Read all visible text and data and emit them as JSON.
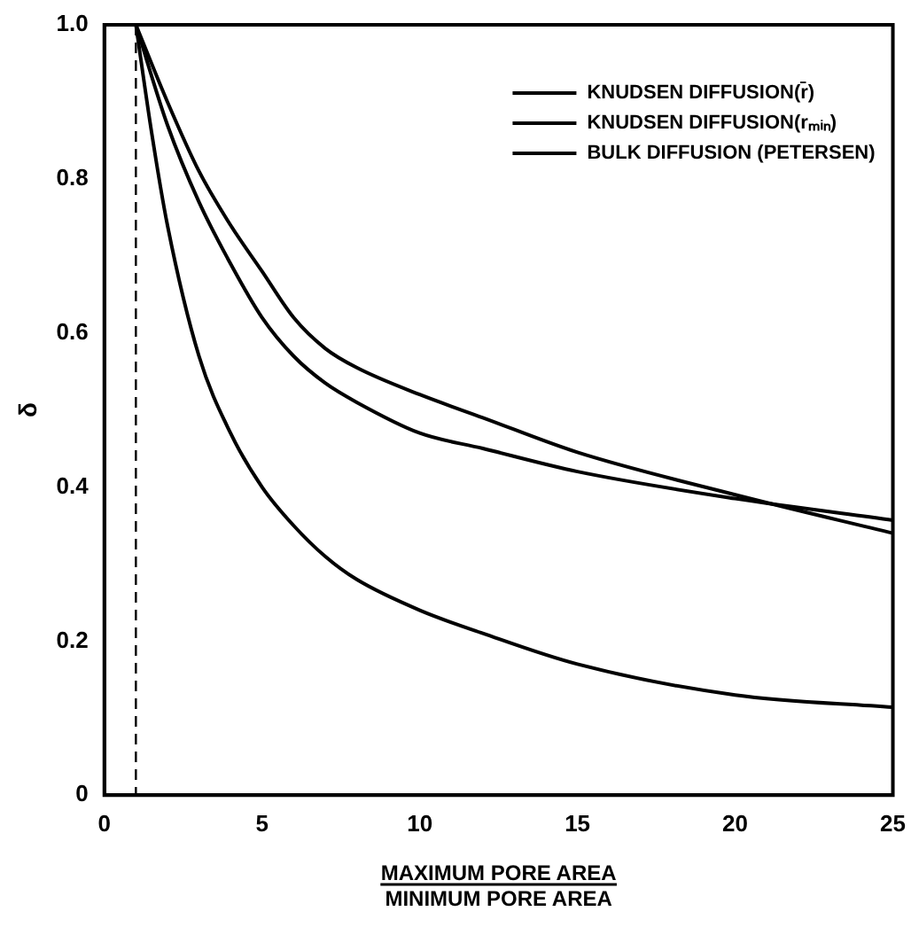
{
  "chart_data": {
    "type": "line",
    "ylabel": "δ",
    "xlabel": "MAXIMUM PORE AREA\nMINIMUM PORE AREA",
    "xlim": [
      0,
      25
    ],
    "xticks": [
      0,
      5,
      10,
      15,
      20,
      25
    ],
    "ylim": [
      0,
      1
    ],
    "yticks": [
      0,
      0.2,
      0.4,
      0.6,
      0.8,
      {
        "value": 1,
        "label": "1.0"
      }
    ],
    "grid": false,
    "legend": "top right",
    "marker": "none",
    "line_style": "solid",
    "ref_lines": [
      {
        "axis": "x",
        "value": 1,
        "label": null,
        "line_style": "dashed",
        "color": "#000000"
      }
    ],
    "series": [
      {
        "name": "KNUDSEN DIFFUSION(r̄)",
        "color": "#000000",
        "x": [
          1,
          2,
          3,
          4,
          5,
          6,
          7,
          8,
          10,
          12,
          15,
          20,
          25
        ],
        "values": [
          1,
          0.9,
          0.81,
          0.74,
          0.68,
          0.62,
          0.58,
          0.555,
          0.52,
          0.49,
          0.445,
          0.39,
          0.34
        ]
      },
      {
        "name": "KNUDSEN DIFFUSION(rₘᵢₙ)",
        "color": "#000000",
        "x": [
          1,
          2,
          3,
          4,
          5,
          6,
          7,
          8,
          10,
          12,
          15,
          20,
          25
        ],
        "values": [
          1,
          0.87,
          0.77,
          0.69,
          0.62,
          0.57,
          0.535,
          0.51,
          0.47,
          0.45,
          0.42,
          0.385,
          0.357
        ]
      },
      {
        "name": "BULK DIFFUSION (PETERSEN)",
        "color": "#000000",
        "x": [
          1,
          1.5,
          2,
          3,
          4,
          5,
          6,
          7,
          8,
          10,
          12,
          15,
          20,
          25
        ],
        "values": [
          1,
          0.86,
          0.74,
          0.57,
          0.47,
          0.4,
          0.35,
          0.31,
          0.28,
          0.24,
          0.21,
          0.17,
          0.13,
          0.114
        ]
      }
    ]
  }
}
